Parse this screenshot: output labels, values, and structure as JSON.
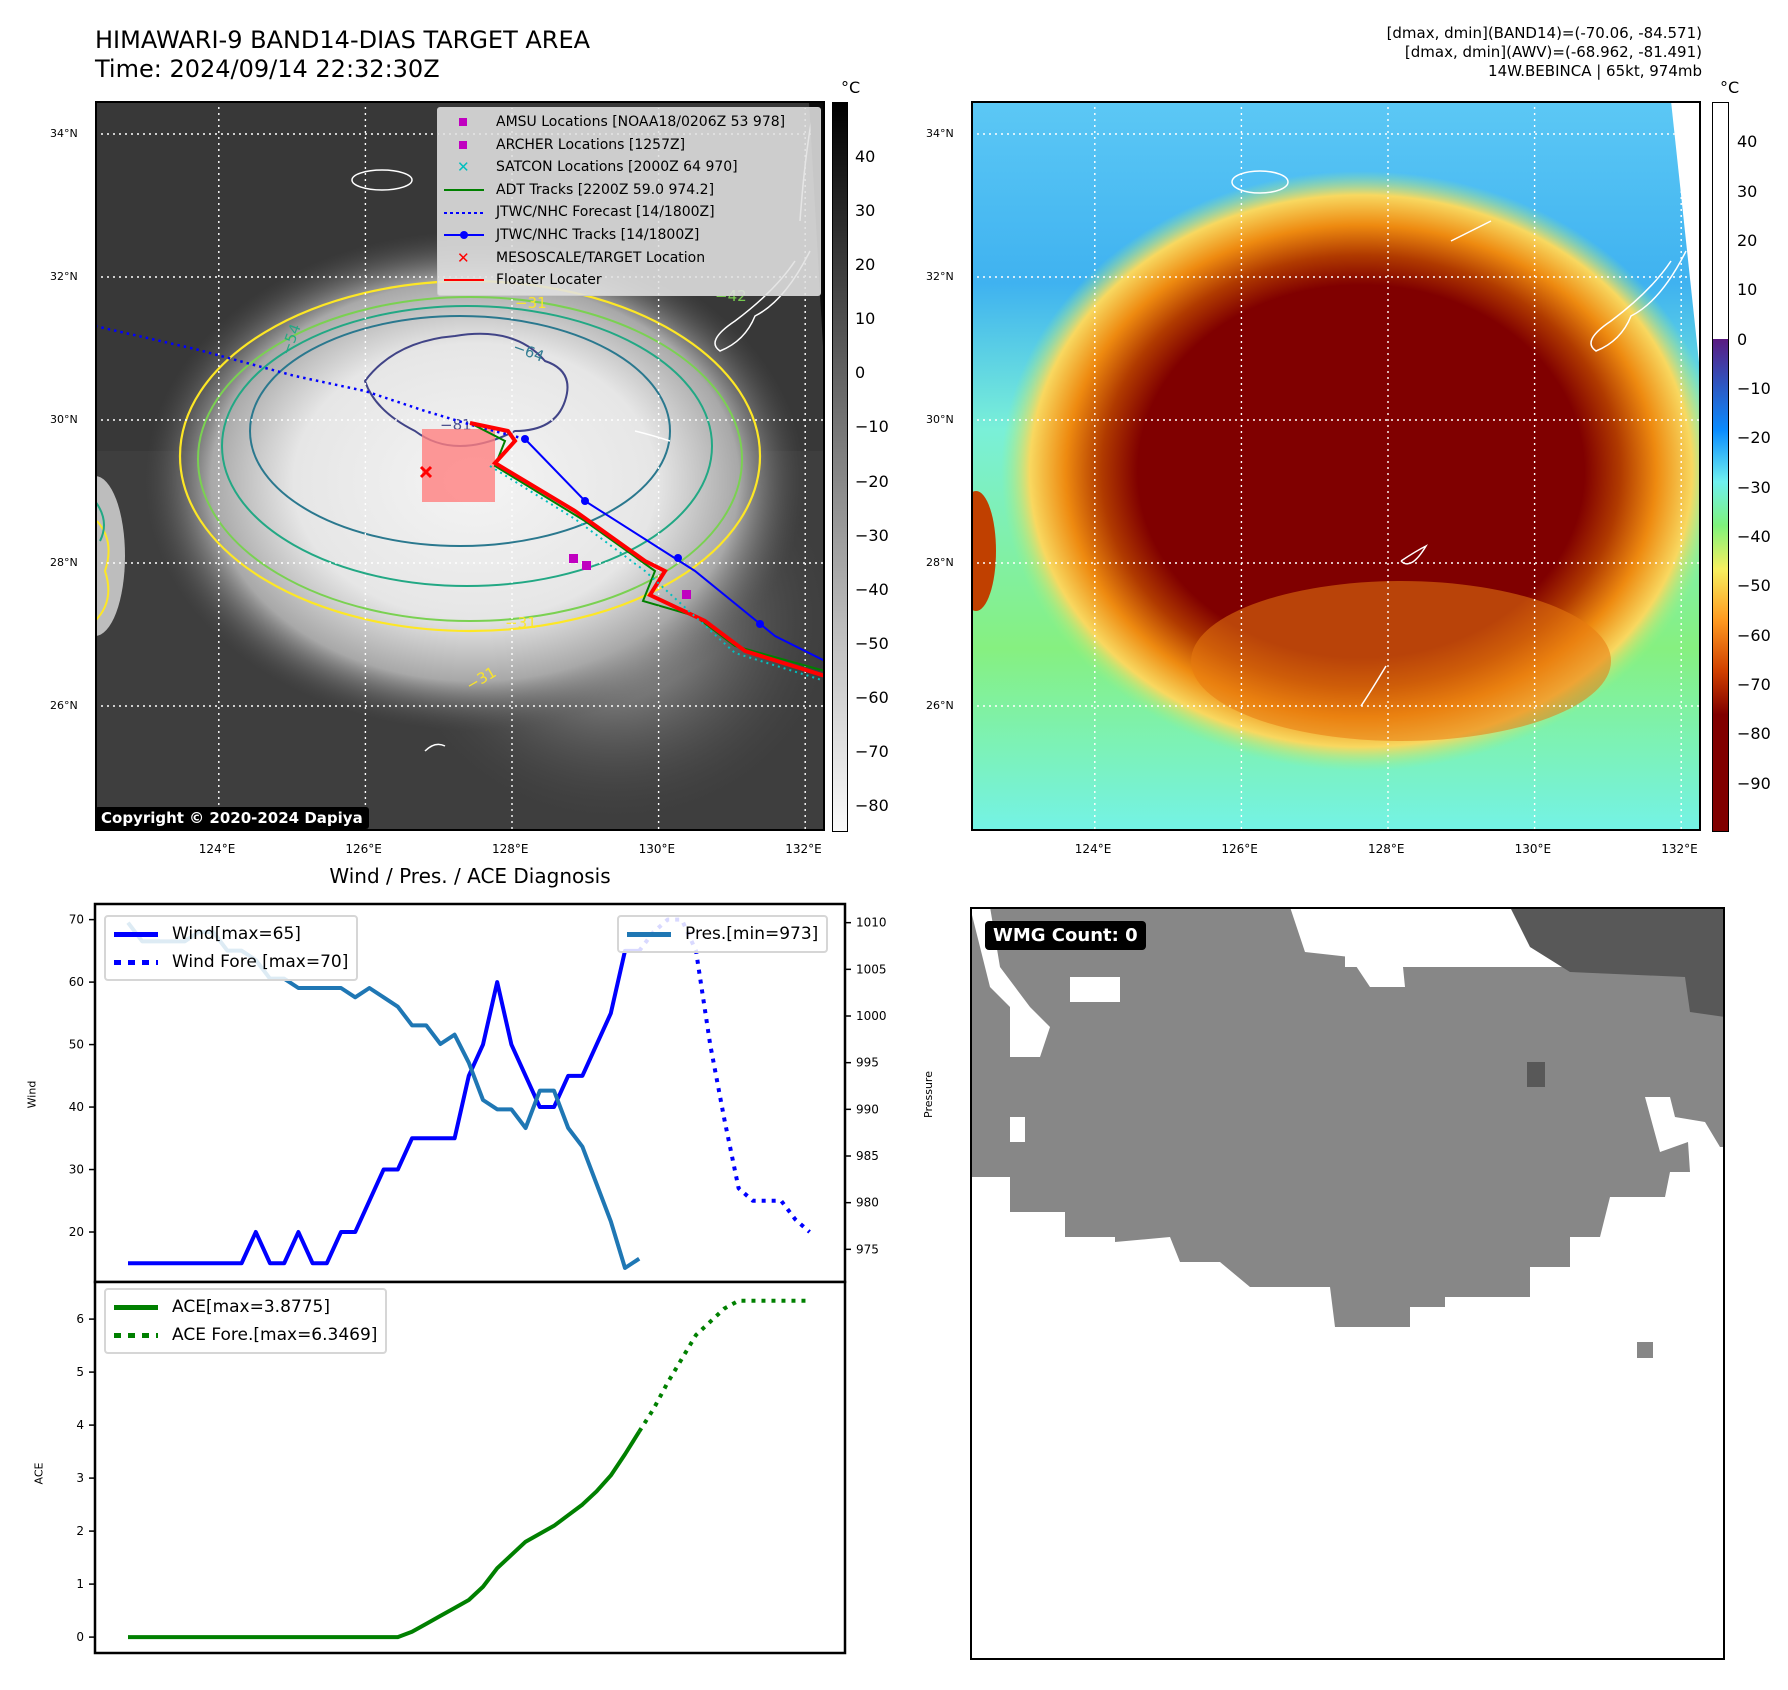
{
  "header": {
    "title_line1": "HIMAWARI-9 BAND14-DIAS TARGET AREA",
    "title_line2": "Time: 2024/09/14 22:32:30Z",
    "info_line1": "[dmax, dmin](BAND14)=(-70.06, -84.571)",
    "info_line2": "[dmax, dmin](AWV)=(-68.962, -81.491)",
    "info_line3": "14W.BEBINCA | 65kt, 974mb"
  },
  "maps": {
    "lat_ticks": [
      "34°N",
      "32°N",
      "30°N",
      "28°N",
      "26°N"
    ],
    "lon_ticks": [
      "124°E",
      "126°E",
      "128°E",
      "130°E",
      "132°E"
    ],
    "lat_values": [
      34,
      32,
      30,
      28,
      26
    ],
    "lon_values": [
      124,
      126,
      128,
      130,
      132
    ],
    "left_colorbar": {
      "unit": "°C",
      "ticks": [
        "40",
        "30",
        "20",
        "10",
        "0",
        "−10",
        "−20",
        "−30",
        "−40",
        "−50",
        "−60",
        "−70",
        "−80"
      ],
      "range": [
        50,
        -85
      ]
    },
    "right_colorbar": {
      "unit": "°C",
      "ticks": [
        "40",
        "30",
        "20",
        "10",
        "0",
        "−10",
        "−20",
        "−30",
        "−40",
        "−50",
        "−60",
        "−70",
        "−80",
        "−90"
      ],
      "range": [
        48,
        -100
      ]
    },
    "contour_labels": [
      "−31",
      "−42",
      "−54",
      "−64",
      "−81",
      "−31",
      "−31"
    ],
    "copyright": "Copyright © 2020-2024 Dapiya",
    "legend": [
      {
        "label": "AMSU Locations [NOAA18/0206Z 53 978]",
        "symbol": "square",
        "color": "#c000c0"
      },
      {
        "label": "ARCHER Locations [1257Z]",
        "symbol": "square",
        "color": "#c000c0"
      },
      {
        "label": "SATCON Locations [2000Z 64 970]",
        "symbol": "x",
        "color": "#00bfbf"
      },
      {
        "label": "ADT Tracks [2200Z 59.0 974.2]",
        "symbol": "line",
        "color": "#008000"
      },
      {
        "label": "JTWC/NHC Forecast [14/1800Z]",
        "symbol": "dotted",
        "color": "#0000ff"
      },
      {
        "label": "JTWC/NHC Tracks [14/1800Z]",
        "symbol": "line-dot",
        "color": "#0000ff"
      },
      {
        "label": "MESOSCALE/TARGET Location",
        "symbol": "x",
        "color": "#ff0000"
      },
      {
        "label": "Floater Locater",
        "symbol": "line",
        "color": "#ff0000"
      }
    ]
  },
  "wmg": {
    "label": "WMG Count: 0"
  },
  "chart_data": [
    {
      "type": "line",
      "title": "Wind / Pres. / ACE Diagnosis",
      "ylabel": "Wind",
      "y2label": "Pressure",
      "ylim": [
        12,
        72.5
      ],
      "y2lim": [
        971.5,
        1012
      ],
      "yticks": [
        20,
        30,
        40,
        50,
        60,
        70
      ],
      "y2ticks": [
        975,
        980,
        985,
        990,
        995,
        1000,
        1005,
        1010
      ],
      "x_count": 49,
      "series": [
        {
          "name": "Wind[max=65]",
          "axis": "left",
          "style": "solid",
          "color": "#0000ff",
          "x_start": 0,
          "values": [
            15,
            15,
            15,
            15,
            15,
            15,
            15,
            15,
            15,
            20,
            15,
            15,
            20,
            15,
            15,
            20,
            20,
            25,
            30,
            30,
            35,
            35,
            35,
            35,
            45,
            50,
            60,
            50,
            45,
            40,
            40,
            45,
            45,
            50,
            55,
            65,
            65
          ]
        },
        {
          "name": "Wind Fore [max=70]",
          "axis": "left",
          "style": "dotted",
          "color": "#0000ff",
          "x_start": 36,
          "values": [
            65,
            68,
            70,
            70,
            65,
            50,
            38,
            27,
            25,
            25,
            25,
            22,
            20
          ]
        },
        {
          "name": "Pres.[min=973]",
          "axis": "right",
          "style": "solid",
          "color": "#1f77b4",
          "x_start": 0,
          "values": [
            1010,
            1008,
            1008,
            1008,
            1008,
            1009,
            1009,
            1007,
            1007,
            1006,
            1004,
            1004,
            1003,
            1003,
            1003,
            1003,
            1002,
            1003,
            1002,
            1001,
            999,
            999,
            997,
            998,
            995,
            991,
            990,
            990,
            988,
            992,
            992,
            988,
            986,
            982,
            978,
            973,
            974
          ]
        }
      ]
    },
    {
      "type": "line",
      "ylabel": "ACE",
      "ylim": [
        -0.3,
        6.7
      ],
      "yticks": [
        0,
        1,
        2,
        3,
        4,
        5,
        6
      ],
      "x_count": 49,
      "series": [
        {
          "name": "ACE[max=3.8775]",
          "style": "solid",
          "color": "#008000",
          "x_start": 0,
          "values": [
            0,
            0,
            0,
            0,
            0,
            0,
            0,
            0,
            0,
            0,
            0,
            0,
            0,
            0,
            0,
            0,
            0,
            0,
            0,
            0,
            0.1,
            0.25,
            0.4,
            0.55,
            0.7,
            0.95,
            1.3,
            1.55,
            1.8,
            1.95,
            2.1,
            2.3,
            2.5,
            2.75,
            3.05,
            3.45,
            3.8775
          ]
        },
        {
          "name": "ACE Fore.[max=6.3469]",
          "style": "dotted",
          "color": "#008000",
          "x_start": 36,
          "values": [
            3.8775,
            4.3,
            4.8,
            5.25,
            5.7,
            5.95,
            6.2,
            6.3469,
            6.3469,
            6.3469,
            6.3469,
            6.3469,
            6.3469
          ]
        }
      ]
    }
  ]
}
